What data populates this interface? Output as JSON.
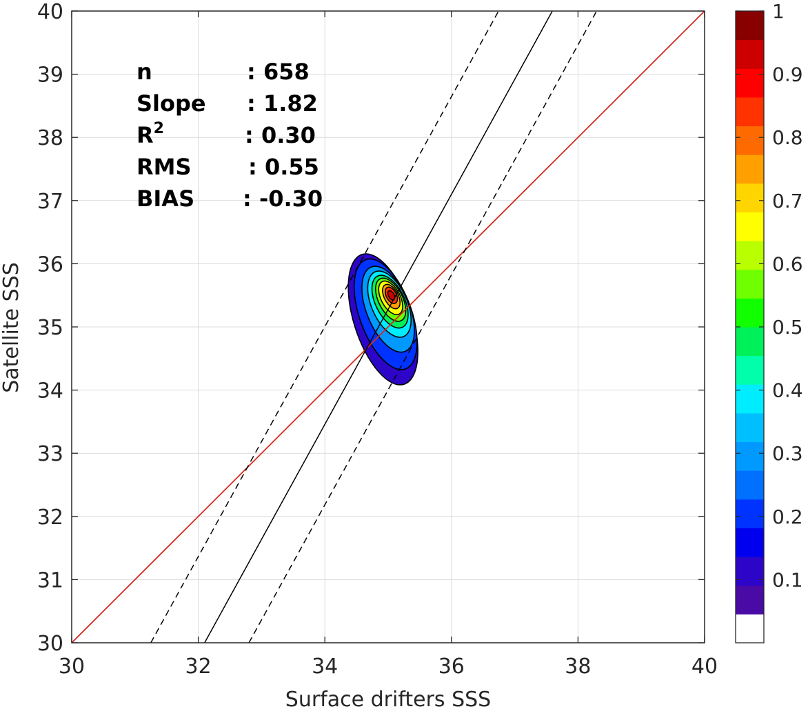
{
  "chart_data": {
    "type": "contour",
    "xlabel": "Surface drifters SSS",
    "ylabel": "Satellite SSS",
    "xlim": [
      30,
      40
    ],
    "ylim": [
      30,
      40
    ],
    "xticks": [
      30,
      32,
      34,
      36,
      38,
      40
    ],
    "yticks": [
      30,
      31,
      32,
      33,
      34,
      35,
      36,
      37,
      38,
      39,
      40
    ],
    "grid": true,
    "stats": [
      {
        "label": "n",
        "value": ": 658"
      },
      {
        "label": "Slope",
        "value": ": 1.82"
      },
      {
        "label": "R",
        "sup": "2",
        "value": ": 0.30"
      },
      {
        "label": "RMS",
        "value": ": 0.55"
      },
      {
        "label": "BIAS",
        "value": ": -0.30"
      }
    ],
    "lines": {
      "one_to_one": {
        "color": "#d62a1e",
        "points": [
          [
            30,
            30
          ],
          [
            40,
            40
          ]
        ]
      },
      "regression": {
        "slope": 1.82,
        "x_at_y30": 32.1,
        "style": "solid",
        "color": "#000000"
      },
      "rms_upper": {
        "slope": 1.82,
        "x_at_y30": 31.25,
        "style": "dashed",
        "color": "#000000"
      },
      "rms_lower": {
        "slope": 1.82,
        "x_at_y30": 32.8,
        "style": "dashed",
        "color": "#000000"
      }
    },
    "density_peak": {
      "x": 35.05,
      "y": 35.5
    },
    "contour_levels": [
      0.05,
      0.1,
      0.15,
      0.2,
      0.25,
      0.3,
      0.35,
      0.4,
      0.45,
      0.5,
      0.55,
      0.6,
      0.65,
      0.7,
      0.75,
      0.8,
      0.85,
      0.9,
      0.95,
      1.0
    ],
    "contours": [
      {
        "level": 0.05,
        "cx": 34.92,
        "cy": 35.12,
        "rx": 0.46,
        "ry": 1.08,
        "rot": -18
      },
      {
        "level": 0.15,
        "cx": 34.96,
        "cy": 35.2,
        "rx": 0.41,
        "ry": 0.92,
        "rot": -20
      },
      {
        "level": 0.25,
        "cx": 35.0,
        "cy": 35.28,
        "rx": 0.34,
        "ry": 0.72,
        "rot": -22
      },
      {
        "level": 0.35,
        "cx": 35.02,
        "cy": 35.36,
        "rx": 0.28,
        "ry": 0.56,
        "rot": -24
      },
      {
        "level": 0.45,
        "cx": 35.03,
        "cy": 35.4,
        "rx": 0.23,
        "ry": 0.45,
        "rot": -26
      },
      {
        "level": 0.55,
        "cx": 35.04,
        "cy": 35.43,
        "rx": 0.19,
        "ry": 0.37,
        "rot": -27
      },
      {
        "level": 0.65,
        "cx": 35.04,
        "cy": 35.46,
        "rx": 0.15,
        "ry": 0.29,
        "rot": -28
      },
      {
        "level": 0.75,
        "cx": 35.05,
        "cy": 35.48,
        "rx": 0.11,
        "ry": 0.21,
        "rot": -28
      },
      {
        "level": 0.85,
        "cx": 35.05,
        "cy": 35.5,
        "rx": 0.08,
        "ry": 0.14,
        "rot": -28
      },
      {
        "level": 0.95,
        "cx": 35.05,
        "cy": 35.5,
        "rx": 0.045,
        "ry": 0.08,
        "rot": -28
      }
    ],
    "colorbar": {
      "min": 0,
      "max": 1,
      "ticks": [
        0.1,
        0.2,
        0.3,
        0.4,
        0.5,
        0.6,
        0.7,
        0.8,
        0.9,
        1
      ],
      "tick_labels": [
        "0.1",
        "0.2",
        "0.3",
        "0.4",
        "0.5",
        "0.6",
        "0.7",
        "0.8",
        "0.9",
        "1"
      ],
      "colors": [
        "#ffffff",
        "#4a0aa5",
        "#2c05c8",
        "#0000ee",
        "#0033ff",
        "#0070ff",
        "#0099ff",
        "#00bfff",
        "#00ecff",
        "#00ffaa",
        "#00f05a",
        "#11ff00",
        "#6fff00",
        "#b9ff00",
        "#ffff00",
        "#ffd500",
        "#ffa000",
        "#ff6a00",
        "#ff3300",
        "#ff0000",
        "#cc0000",
        "#880000"
      ]
    }
  }
}
